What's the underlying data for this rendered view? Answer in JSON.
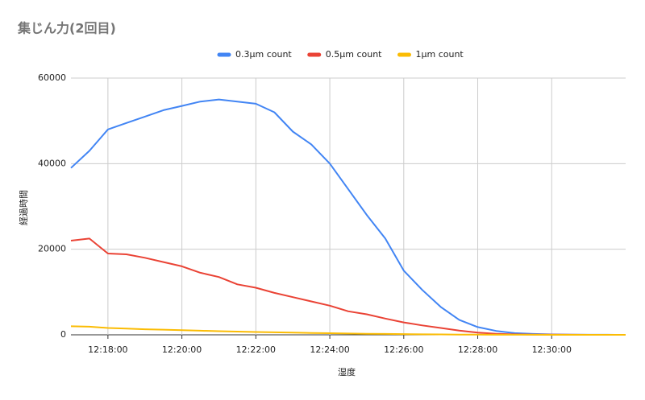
{
  "chart_data": {
    "type": "line",
    "title": "集じん力(2回目)",
    "x_label": "湿度",
    "y_label": "経過時間",
    "x": [
      "12:17:00",
      "12:17:30",
      "12:18:00",
      "12:18:30",
      "12:19:00",
      "12:19:30",
      "12:20:00",
      "12:20:30",
      "12:21:00",
      "12:21:30",
      "12:22:00",
      "12:22:30",
      "12:23:00",
      "12:23:30",
      "12:24:00",
      "12:24:30",
      "12:25:00",
      "12:25:30",
      "12:26:00",
      "12:26:30",
      "12:27:00",
      "12:27:30",
      "12:28:00",
      "12:28:30",
      "12:29:00",
      "12:29:30",
      "12:30:00",
      "12:30:30",
      "12:31:00",
      "12:31:30",
      "12:32:00"
    ],
    "series": [
      {
        "name": "0.3µm count",
        "color": "#4285f4",
        "values": [
          39000,
          43000,
          48000,
          49500,
          51000,
          52500,
          53500,
          54500,
          55000,
          54500,
          54000,
          52000,
          47500,
          44500,
          40000,
          34000,
          28000,
          22500,
          15000,
          10500,
          6500,
          3500,
          1800,
          900,
          400,
          200,
          100,
          50,
          20,
          10,
          0
        ]
      },
      {
        "name": "0.5µm count",
        "color": "#ea4335",
        "values": [
          22000,
          22500,
          19000,
          18800,
          18000,
          17000,
          16000,
          14500,
          13500,
          11800,
          11000,
          9800,
          8800,
          7800,
          6800,
          5500,
          4800,
          3800,
          2900,
          2200,
          1600,
          1000,
          500,
          250,
          120,
          60,
          30,
          15,
          8,
          4,
          0
        ]
      },
      {
        "name": "1µm count",
        "color": "#fbbc04",
        "values": [
          2000,
          1900,
          1600,
          1450,
          1300,
          1200,
          1100,
          950,
          850,
          750,
          650,
          580,
          500,
          430,
          370,
          300,
          250,
          200,
          160,
          120,
          90,
          60,
          40,
          25,
          15,
          10,
          6,
          4,
          2,
          1,
          0
        ]
      }
    ],
    "xlim": [
      "12:17:00",
      "12:32:00"
    ],
    "xticks": [
      "12:18:00",
      "12:20:00",
      "12:22:00",
      "12:24:00",
      "12:26:00",
      "12:28:00",
      "12:30:00"
    ],
    "ylim": [
      0,
      60000
    ],
    "yticks": [
      0,
      20000,
      40000,
      60000
    ],
    "grid": true,
    "legend": "top"
  }
}
